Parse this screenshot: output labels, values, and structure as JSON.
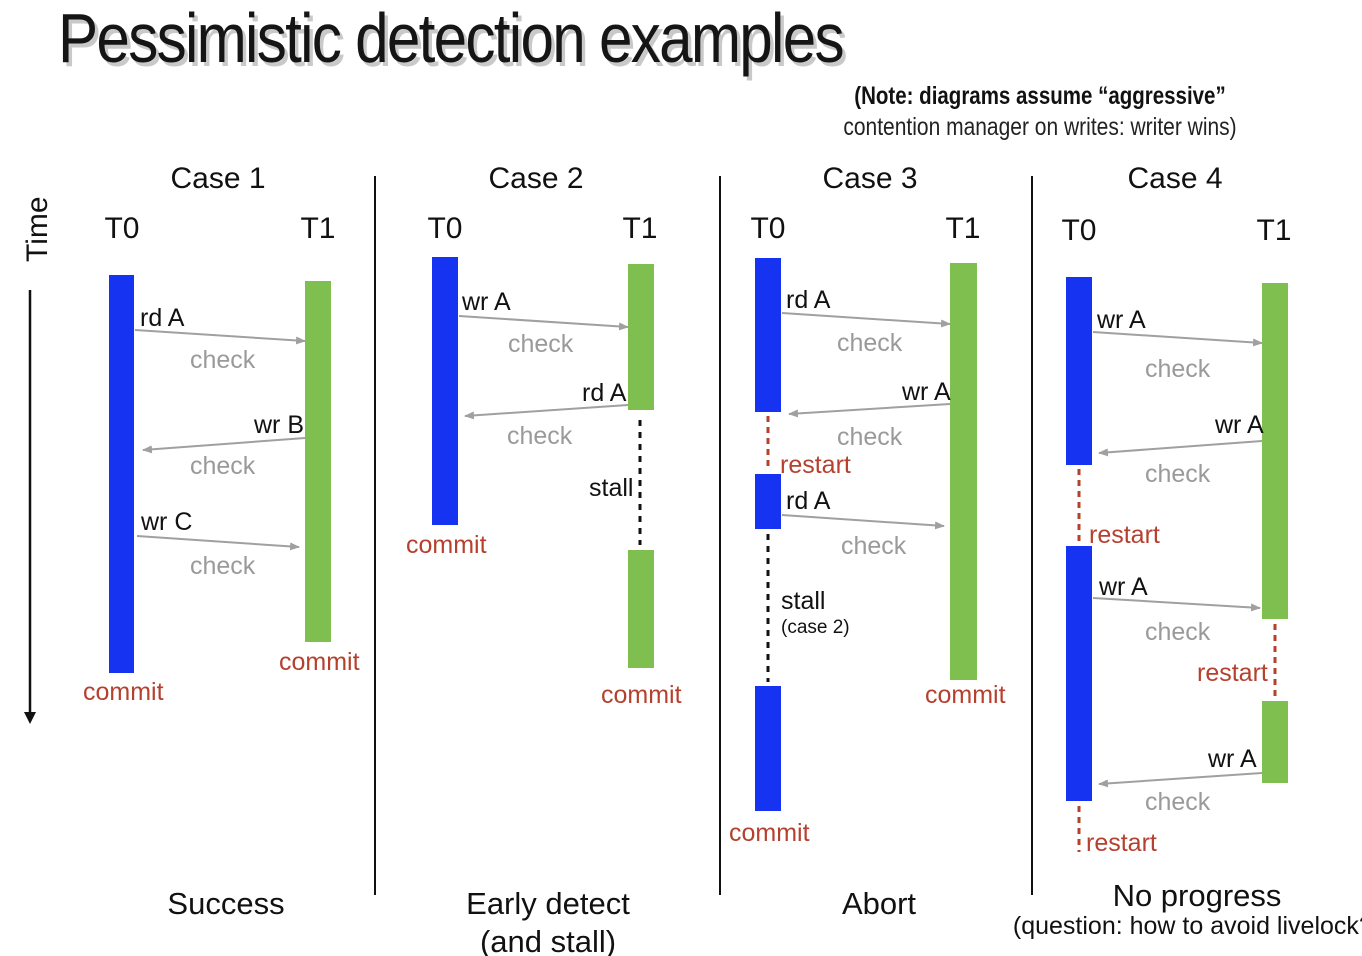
{
  "title": "Pessimistic detection examples",
  "note": {
    "bold": "(Note: diagrams assume “aggressive”",
    "normal": "contention manager on writes: writer wins)"
  },
  "time_label": "Time",
  "cases": [
    {
      "header": "Case 1",
      "t0": "T0",
      "t1": "T1",
      "labels": [
        "rd A",
        "check",
        "wr B",
        "check",
        "wr C",
        "check"
      ],
      "commit_t0": "commit",
      "commit_t1": "commit",
      "caption": "Success"
    },
    {
      "header": "Case 2",
      "t0": "T0",
      "t1": "T1",
      "labels": [
        "wr A",
        "check",
        "rd A",
        "check",
        "stall"
      ],
      "commit_t0": "commit",
      "commit_t1": "commit",
      "caption_line1": "Early detect",
      "caption_line2": "(and stall)"
    },
    {
      "header": "Case 3",
      "t0": "T0",
      "t1": "T1",
      "labels": [
        "rd A",
        "check",
        "wr A",
        "check",
        "rd A",
        "check",
        "stall",
        "(case 2)"
      ],
      "restart": "restart",
      "commit_t0": "commit",
      "commit_t1": "commit",
      "caption": "Abort"
    },
    {
      "header": "Case 4",
      "t0": "T0",
      "t1": "T1",
      "labels": [
        "wr A",
        "check",
        "wr A",
        "check",
        "wr A",
        "check",
        "wr A",
        "check"
      ],
      "restart_1": "restart",
      "restart_2": "restart",
      "restart_3": "restart",
      "caption_line1": "No progress",
      "caption_line2": "(question: how to avoid livelock?)"
    }
  ],
  "colors": {
    "t0_bar": "#1533f0",
    "t1_bar": "#7fbf4f",
    "red_text": "#b5402e",
    "check_text": "#9a9a9a",
    "arrow": "#a0a0a0"
  }
}
